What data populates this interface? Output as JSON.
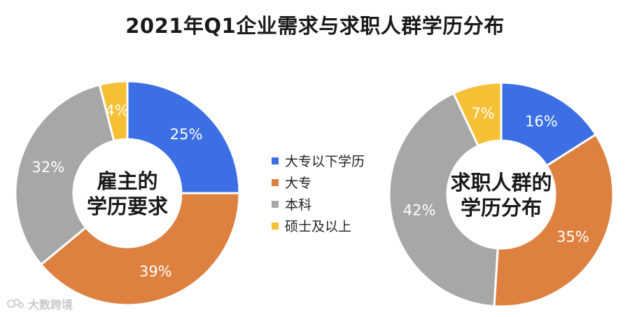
{
  "title": "2021年Q1企业需求与求职人群学历分布",
  "colors": {
    "blue": "#3B6FE3",
    "orange": "#DD8040",
    "gray": "#A7A7A7",
    "yellow": "#F5C035"
  },
  "legend": [
    {
      "label": "大专以下学历",
      "color": "#3B6FE3"
    },
    {
      "label": "大专",
      "color": "#DD8040"
    },
    {
      "label": "本科",
      "color": "#A7A7A7"
    },
    {
      "label": "硕士及以上",
      "color": "#F5C035"
    }
  ],
  "watermark": {
    "text": "大数跨境"
  },
  "chart_data": [
    {
      "type": "pie",
      "donut": true,
      "center_label": [
        "雇主的",
        "学历要求"
      ],
      "categories": [
        "大专以下学历",
        "大专",
        "本科",
        "硕士及以上"
      ],
      "values": [
        25,
        39,
        32,
        4
      ],
      "labels": [
        "25%",
        "39%",
        "32%",
        "4%"
      ]
    },
    {
      "type": "pie",
      "donut": true,
      "center_label": [
        "求职人群的",
        "学历分布"
      ],
      "categories": [
        "大专以下学历",
        "大专",
        "本科",
        "硕士及以上"
      ],
      "values": [
        16,
        35,
        42,
        7
      ],
      "labels": [
        "16%",
        "35%",
        "42%",
        "7%"
      ]
    }
  ]
}
